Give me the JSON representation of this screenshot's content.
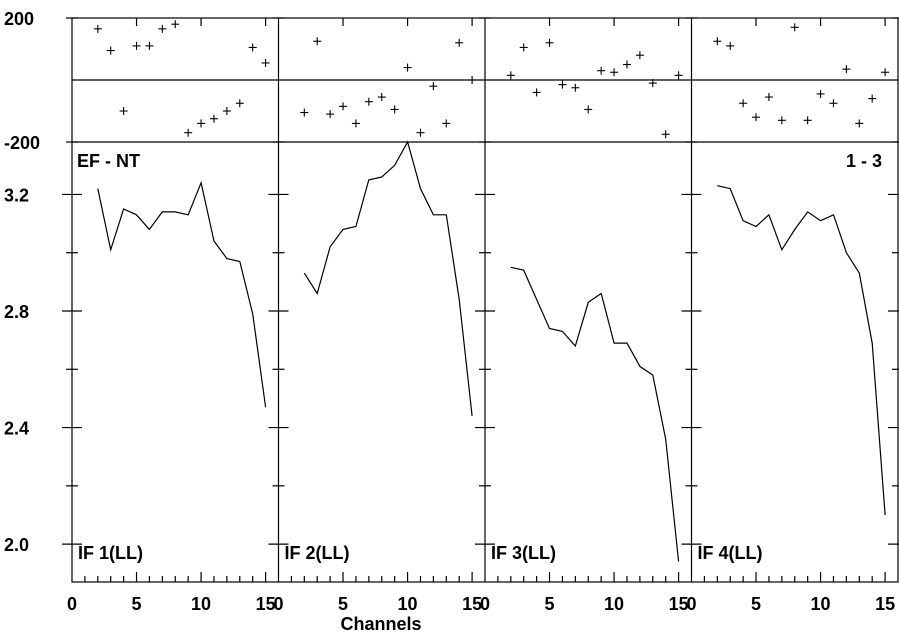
{
  "chart_data": {
    "type": "line",
    "title_left": "EF - NT",
    "title_right": "1 - 3",
    "xlabel": "Channels",
    "xlim": [
      0,
      16
    ],
    "x_ticks": [
      0,
      5,
      10,
      15
    ],
    "phase": {
      "ylim": [
        -200,
        200
      ],
      "y_ticks": [
        "200",
        "-200"
      ]
    },
    "amplitude": {
      "ylim": [
        1.87,
        3.38
      ],
      "y_ticks": [
        "3.2",
        "2.8",
        "2.4",
        "2.0"
      ],
      "y_tick_values": [
        3.2,
        2.8,
        2.4,
        2.0
      ]
    },
    "panels": [
      {
        "label": "IF 1(LL)",
        "amplitude": {
          "x": [
            2,
            3,
            4,
            5,
            6,
            7,
            8,
            9,
            10,
            11,
            12,
            13,
            14,
            15
          ],
          "y": [
            3.22,
            3.01,
            3.15,
            3.13,
            3.08,
            3.14,
            3.14,
            3.13,
            3.24,
            3.04,
            2.98,
            2.97,
            2.79,
            2.47
          ]
        },
        "phase": {
          "x": [
            2,
            3,
            4,
            5,
            6,
            7,
            8,
            9,
            10,
            11,
            12,
            13,
            14,
            15
          ],
          "y": [
            165,
            95,
            -100,
            110,
            110,
            165,
            180,
            -170,
            -140,
            -125,
            -100,
            -75,
            105,
            55
          ]
        }
      },
      {
        "label": "IF 2(LL)",
        "amplitude": {
          "x": [
            2,
            3,
            4,
            5,
            6,
            7,
            8,
            9,
            10,
            11,
            12,
            13,
            14,
            15
          ],
          "y": [
            2.93,
            2.86,
            3.02,
            3.08,
            3.09,
            3.25,
            3.26,
            3.3,
            3.38,
            3.22,
            3.13,
            3.13,
            2.84,
            2.44
          ]
        },
        "phase": {
          "x": [
            2,
            3,
            4,
            5,
            6,
            7,
            8,
            9,
            10,
            11,
            12,
            13,
            14,
            15
          ],
          "y": [
            -105,
            125,
            -110,
            -85,
            -140,
            -70,
            -55,
            -95,
            40,
            -170,
            -20,
            -140,
            120,
            0
          ]
        }
      },
      {
        "label": "IF 3(LL)",
        "amplitude": {
          "x": [
            2,
            3,
            4,
            5,
            6,
            7,
            8,
            9,
            10,
            11,
            12,
            13,
            14,
            15
          ],
          "y": [
            2.95,
            2.94,
            2.84,
            2.74,
            2.73,
            2.68,
            2.83,
            2.86,
            2.69,
            2.69,
            2.61,
            2.58,
            2.36,
            1.94
          ]
        },
        "phase": {
          "x": [
            2,
            3,
            4,
            5,
            6,
            7,
            8,
            9,
            10,
            11,
            12,
            13,
            14,
            15
          ],
          "y": [
            15,
            105,
            -40,
            120,
            -15,
            -25,
            -95,
            30,
            25,
            50,
            80,
            -10,
            -175,
            15
          ]
        }
      },
      {
        "label": "IF 4(LL)",
        "amplitude": {
          "x": [
            2,
            3,
            4,
            5,
            6,
            7,
            8,
            9,
            10,
            11,
            12,
            13,
            14,
            15
          ],
          "y": [
            3.23,
            3.22,
            3.11,
            3.09,
            3.13,
            3.01,
            3.08,
            3.14,
            3.11,
            3.13,
            3.0,
            2.93,
            2.69,
            2.1
          ]
        },
        "phase": {
          "x": [
            2,
            3,
            4,
            5,
            6,
            7,
            8,
            9,
            10,
            11,
            12,
            13,
            14,
            15
          ],
          "y": [
            125,
            110,
            -75,
            -120,
            -55,
            -130,
            170,
            -130,
            -45,
            -75,
            35,
            -140,
            -60,
            25
          ]
        }
      }
    ]
  }
}
